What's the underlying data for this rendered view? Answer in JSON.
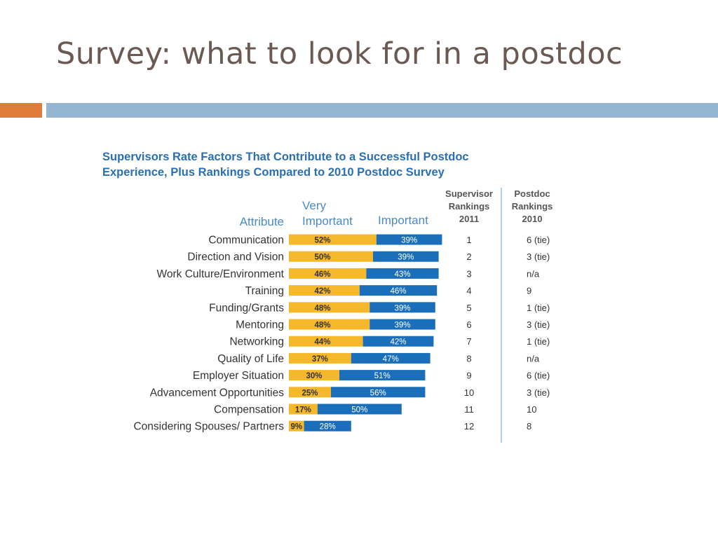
{
  "slide": {
    "title": "Survey: what to look for in a postdoc",
    "accent_colors": {
      "orange": "#e07b39",
      "blue": "#94b6d2",
      "title": "#6a5a53"
    }
  },
  "chart_data": {
    "type": "bar",
    "orientation": "horizontal",
    "stacked": true,
    "title": "Supervisors Rate Factors That Contribute to a Successful Postdoc Experience, Plus Rankings Compared to 2010 Postdoc Survey",
    "title_lines": [
      "Supervisors Rate Factors That Contribute to a Successful Postdoc",
      "Experience, Plus Rankings Compared to 2010 Postdoc Survey"
    ],
    "headers": {
      "attribute": "Attribute",
      "very_important": [
        "Very",
        "Important"
      ],
      "important": "Important",
      "supervisor": [
        "Supervisor",
        "Rankings",
        "2011"
      ],
      "postdoc": [
        "Postdoc",
        "Rankings",
        "2010"
      ]
    },
    "colors": {
      "very_important": "#f6b82b",
      "important": "#1b6fba",
      "title": "#2b6fb3",
      "header": "#4a8ac6"
    },
    "categories": [
      "Communication",
      "Direction and Vision",
      "Work Culture/Environment",
      "Training",
      "Funding/Grants",
      "Mentoring",
      "Networking",
      "Quality of Life",
      "Employer Situation",
      "Advancement Opportunities",
      "Compensation",
      "Considering Spouses/ Partners"
    ],
    "series": [
      {
        "name": "Very Important",
        "values": [
          52,
          50,
          46,
          42,
          48,
          48,
          44,
          37,
          30,
          25,
          17,
          9
        ],
        "labels": [
          "52%",
          "50%",
          "46%",
          "42%",
          "48%",
          "48%",
          "44%",
          "37%",
          "30%",
          "25%",
          "17%",
          "9%"
        ]
      },
      {
        "name": "Important",
        "values": [
          39,
          39,
          43,
          46,
          39,
          39,
          42,
          47,
          51,
          56,
          50,
          28
        ],
        "labels": [
          "39%",
          "39%",
          "43%",
          "46%",
          "39%",
          "39%",
          "42%",
          "47%",
          "51%",
          "56%",
          "50%",
          "28%"
        ]
      }
    ],
    "supervisor_rankings_2011": [
      "1",
      "2",
      "3",
      "4",
      "5",
      "6",
      "7",
      "8",
      "9",
      "10",
      "11",
      "12"
    ],
    "postdoc_rankings_2010": [
      "6 (tie)",
      "3 (tie)",
      "n/a",
      "9",
      "1 (tie)",
      "3 (tie)",
      "1 (tie)",
      "n/a",
      "6 (tie)",
      "3 (tie)",
      "10",
      "8"
    ]
  }
}
